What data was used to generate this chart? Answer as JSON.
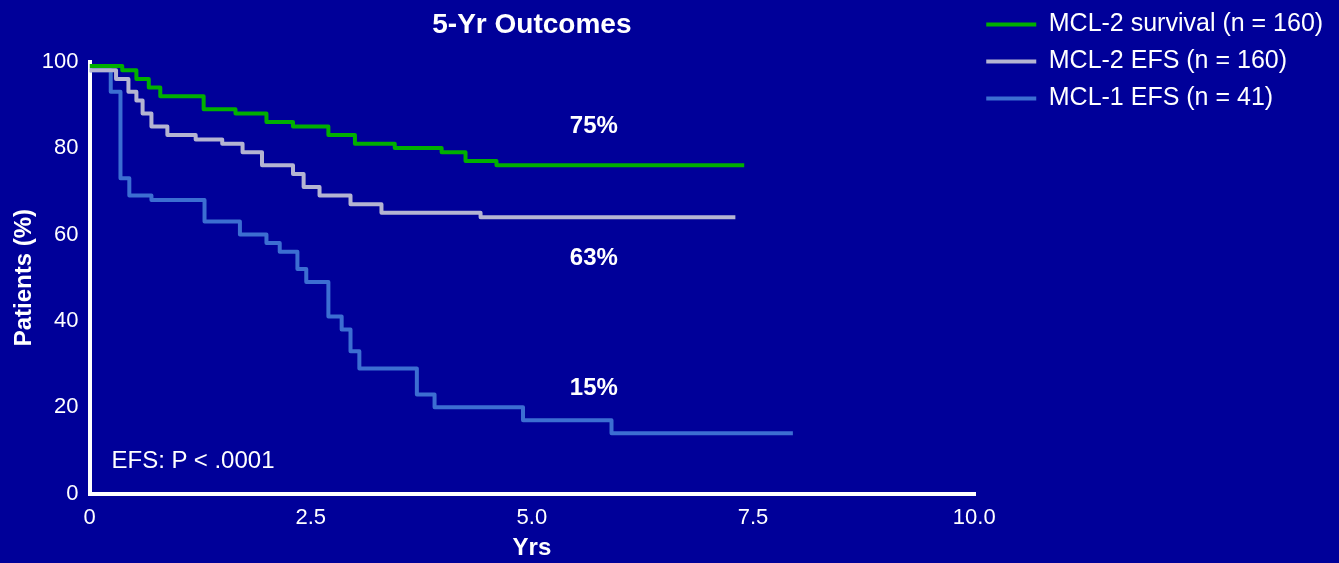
{
  "chart_data": {
    "type": "step",
    "title": "5-Yr Outcomes",
    "xlabel": "Yrs",
    "ylabel": "Patients (%)",
    "xlim": [
      0,
      10
    ],
    "xticks": [
      0,
      2.5,
      {
        "value": 5,
        "label": "5.0"
      },
      7.5,
      {
        "value": 10,
        "label": "10.0"
      }
    ],
    "ylim": [
      0,
      100
    ],
    "yticks": [
      0,
      20,
      40,
      60,
      80,
      100
    ],
    "grid": false,
    "legend": "right",
    "marker": "none",
    "series": [
      {
        "name": "MCL-2 survival (n = 160)",
        "color": "#00b000",
        "x": [
          0,
          0.37,
          0.53,
          0.67,
          0.8,
          1.29,
          1.65,
          2.0,
          2.3,
          2.7,
          3.0,
          3.45,
          3.98,
          4.25,
          4.6,
          7.4
        ],
        "values": [
          99,
          98,
          96,
          94,
          92,
          89,
          88,
          86,
          85,
          83,
          81,
          80,
          79,
          77,
          76,
          76
        ]
      },
      {
        "name": "MCL-2 EFS (n = 160)",
        "color": "#b4b4d2",
        "x": [
          0,
          0.3,
          0.44,
          0.53,
          0.6,
          0.7,
          0.88,
          1.2,
          1.5,
          1.73,
          1.95,
          2.3,
          2.42,
          2.6,
          2.95,
          3.3,
          4.42,
          7.3
        ],
        "values": [
          98,
          96,
          93,
          91,
          88,
          85,
          83,
          82,
          81,
          79,
          76,
          74,
          71,
          69,
          67,
          65,
          64,
          64
        ]
      },
      {
        "name": "MCL-1 EFS (n = 41)",
        "color": "#3c6ed2",
        "x": [
          0,
          0.24,
          0.35,
          0.45,
          0.7,
          1.3,
          1.7,
          2.0,
          2.15,
          2.35,
          2.45,
          2.7,
          2.85,
          2.95,
          3.05,
          3.7,
          3.9,
          4.9,
          5.9,
          7.95
        ],
        "values": [
          98,
          93,
          73,
          69,
          68,
          63,
          60,
          58,
          56,
          52,
          49,
          41,
          38,
          33,
          29,
          23,
          20,
          17,
          14,
          14
        ]
      }
    ],
    "annotations": [
      "75%",
      "63%",
      "15%",
      "EFS: P < .0001"
    ]
  }
}
